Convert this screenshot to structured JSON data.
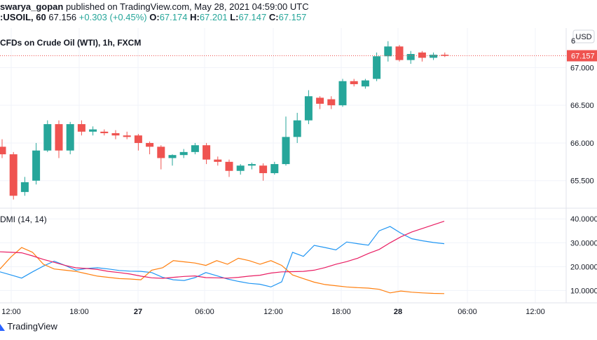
{
  "header": {
    "author": "swarya_gopan",
    "published_text": "published on TradingView.com, May 28, 2021 04:59:00 UTC",
    "symbol": ":USOIL, 60",
    "last": "67.156",
    "change": "+0.303 (+0.45%)",
    "o_label": "O:",
    "o_value": "67.174",
    "h_label": "H:",
    "h_value": "67.201",
    "l_label": "L:",
    "l_value": "67.147",
    "c_label": "C:",
    "c_value": "67.157"
  },
  "price_pane": {
    "title": "CFDs on Crude Oil (WTI), 1h, FXCM",
    "currency": "USD",
    "last_price_label": "67.157",
    "top_partial_label": "6"
  },
  "dmi_pane": {
    "title": "DMI (14, 14)"
  },
  "footer": {
    "brand": "TradingView"
  },
  "colors": {
    "up": "#26a69a",
    "down": "#ef5350",
    "plus_di": "#2196f3",
    "minus_di": "#ff7f0e",
    "adx": "#e91e63",
    "grid": "#f0f3fa",
    "axis_text": "#131722",
    "price_line": "#ef5350"
  },
  "chart_data": [
    {
      "type": "candlestick",
      "title": "CFDs on Crude Oil (WTI), 1h, FXCM",
      "x_tick_labels": [
        "12:00",
        "18:00",
        "27",
        "06:00",
        "12:00",
        "18:00",
        "28",
        "06:00",
        "12:00"
      ],
      "y_tick_labels": [
        "65.500",
        "66.000",
        "66.500",
        "67.000"
      ],
      "ylim": [
        65.2,
        67.45
      ],
      "last_price": 67.157,
      "candles": [
        {
          "o": 65.95,
          "h": 66.05,
          "l": 65.8,
          "c": 65.85
        },
        {
          "o": 65.85,
          "h": 65.88,
          "l": 65.25,
          "c": 65.3
        },
        {
          "o": 65.35,
          "h": 65.55,
          "l": 65.3,
          "c": 65.48
        },
        {
          "o": 65.5,
          "h": 66.0,
          "l": 65.45,
          "c": 65.9
        },
        {
          "o": 65.9,
          "h": 66.3,
          "l": 65.88,
          "c": 66.25
        },
        {
          "o": 66.25,
          "h": 66.3,
          "l": 65.8,
          "c": 65.9
        },
        {
          "o": 65.9,
          "h": 66.28,
          "l": 65.85,
          "c": 66.25
        },
        {
          "o": 66.25,
          "h": 66.3,
          "l": 66.1,
          "c": 66.15
        },
        {
          "o": 66.15,
          "h": 66.22,
          "l": 66.1,
          "c": 66.18
        },
        {
          "o": 66.15,
          "h": 66.18,
          "l": 66.1,
          "c": 66.13
        },
        {
          "o": 66.13,
          "h": 66.17,
          "l": 66.05,
          "c": 66.1
        },
        {
          "o": 66.1,
          "h": 66.15,
          "l": 66.05,
          "c": 66.08
        },
        {
          "o": 66.1,
          "h": 66.12,
          "l": 65.9,
          "c": 66.0
        },
        {
          "o": 66.0,
          "h": 66.02,
          "l": 65.85,
          "c": 65.95
        },
        {
          "o": 65.95,
          "h": 65.97,
          "l": 65.65,
          "c": 65.8
        },
        {
          "o": 65.8,
          "h": 65.85,
          "l": 65.7,
          "c": 65.84
        },
        {
          "o": 65.84,
          "h": 65.92,
          "l": 65.8,
          "c": 65.88
        },
        {
          "o": 65.88,
          "h": 66.0,
          "l": 65.85,
          "c": 65.97
        },
        {
          "o": 65.97,
          "h": 66.0,
          "l": 65.72,
          "c": 65.78
        },
        {
          "o": 65.78,
          "h": 65.82,
          "l": 65.7,
          "c": 65.75
        },
        {
          "o": 65.75,
          "h": 65.78,
          "l": 65.55,
          "c": 65.63
        },
        {
          "o": 65.63,
          "h": 65.72,
          "l": 65.58,
          "c": 65.7
        },
        {
          "o": 65.7,
          "h": 65.74,
          "l": 65.65,
          "c": 65.72
        },
        {
          "o": 65.7,
          "h": 65.73,
          "l": 65.5,
          "c": 65.6
        },
        {
          "o": 65.6,
          "h": 65.75,
          "l": 65.58,
          "c": 65.72
        },
        {
          "o": 65.72,
          "h": 66.35,
          "l": 65.7,
          "c": 66.08
        },
        {
          "o": 66.08,
          "h": 66.4,
          "l": 66.0,
          "c": 66.3
        },
        {
          "o": 66.3,
          "h": 66.7,
          "l": 66.25,
          "c": 66.62
        },
        {
          "o": 66.6,
          "h": 66.62,
          "l": 66.45,
          "c": 66.52
        },
        {
          "o": 66.58,
          "h": 66.62,
          "l": 66.45,
          "c": 66.5
        },
        {
          "o": 66.5,
          "h": 66.85,
          "l": 66.48,
          "c": 66.82
        },
        {
          "o": 66.82,
          "h": 66.85,
          "l": 66.75,
          "c": 66.78
        },
        {
          "o": 66.75,
          "h": 66.85,
          "l": 66.72,
          "c": 66.83
        },
        {
          "o": 66.85,
          "h": 67.2,
          "l": 66.82,
          "c": 67.15
        },
        {
          "o": 67.15,
          "h": 67.35,
          "l": 67.08,
          "c": 67.28
        },
        {
          "o": 67.28,
          "h": 67.3,
          "l": 67.08,
          "c": 67.1
        },
        {
          "o": 67.1,
          "h": 67.22,
          "l": 67.05,
          "c": 67.18
        },
        {
          "o": 67.2,
          "h": 67.22,
          "l": 67.08,
          "c": 67.13
        },
        {
          "o": 67.13,
          "h": 67.2,
          "l": 67.1,
          "c": 67.17
        },
        {
          "o": 67.17,
          "h": 67.2,
          "l": 67.14,
          "c": 67.157
        }
      ]
    },
    {
      "type": "line",
      "title": "DMI (14, 14)",
      "y_tick_labels": [
        "10.0000",
        "20.0000",
        "30.0000",
        "40.0000"
      ],
      "ylim": [
        6,
        43
      ],
      "series": [
        {
          "values": [
            17.8,
            16.5,
            15.2,
            17.8,
            20.2,
            22.3,
            20.5,
            18.5,
            19.2,
            19.5,
            19.0,
            18.4,
            18.1,
            18.0,
            17.5,
            15.5,
            14.5,
            14.2,
            15.4,
            17.5,
            16.2,
            14.8,
            13.8,
            13.0,
            12.6,
            11.5,
            13.6,
            26.0,
            24.3,
            28.9,
            28.0,
            27.0,
            30.3,
            29.6,
            29.0,
            35.0,
            36.8,
            34.0,
            31.7,
            30.8,
            30.1,
            29.6
          ]
        },
        {
          "values": [
            19.0,
            24.0,
            28.0,
            26.0,
            21.0,
            19.0,
            18.5,
            18.0,
            17.0,
            16.0,
            15.5,
            15.0,
            14.8,
            14.5,
            18.5,
            19.5,
            22.5,
            22.0,
            21.5,
            20.5,
            22.5,
            21.0,
            23.5,
            22.5,
            21.0,
            22.5,
            20.5,
            16.5,
            15.0,
            13.5,
            12.5,
            12.0,
            11.5,
            11.2,
            11.0,
            10.5,
            9.0,
            9.8,
            9.3,
            9.0,
            8.8,
            8.7
          ]
        },
        {
          "values": [
            26.2,
            26.0,
            25.8,
            24.5,
            23.0,
            21.8,
            20.5,
            19.5,
            19.2,
            18.8,
            18.0,
            17.5,
            16.9,
            16.0,
            15.3,
            15.1,
            15.5,
            15.9,
            16.1,
            15.4,
            15.3,
            15.2,
            15.5,
            16.0,
            16.4,
            17.3,
            17.8,
            17.9,
            18.0,
            18.5,
            19.6,
            21.0,
            22.1,
            23.5,
            25.5,
            27.2,
            30.0,
            32.5,
            34.5,
            36.0,
            37.5,
            39.0
          ]
        }
      ]
    }
  ]
}
